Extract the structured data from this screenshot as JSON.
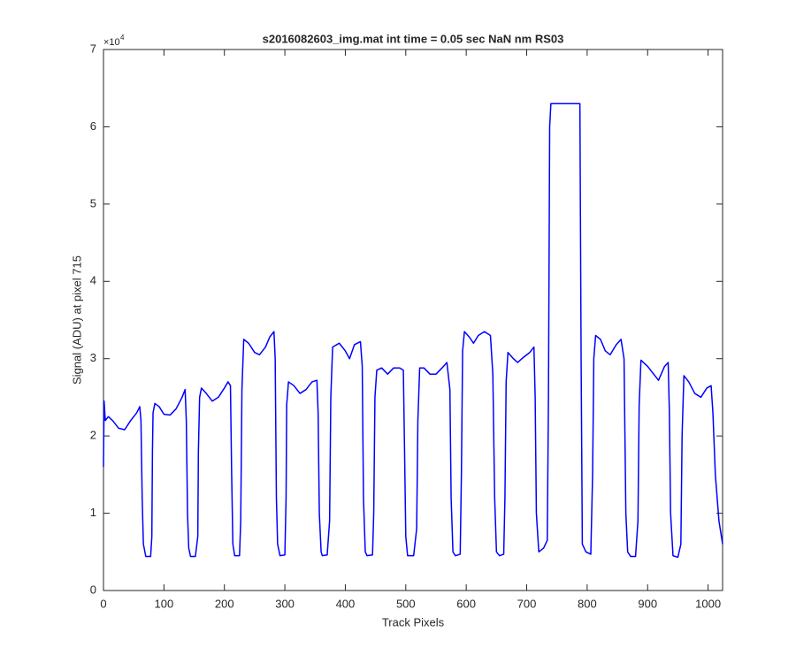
{
  "chart_data": {
    "type": "line",
    "title": "s2016082603_img.mat int time = 0.05 sec  NaN nm RS03",
    "x_label": "Track Pixels",
    "y_label": "Signal (ADU) at pixel 715",
    "y_multiplier_base": "×10",
    "y_multiplier_exponent": "4",
    "xlim": [
      0,
      1024
    ],
    "xticks": [
      0,
      100,
      200,
      300,
      400,
      500,
      600,
      700,
      800,
      900,
      1000
    ],
    "ylim": [
      0,
      7
    ],
    "yticks": [
      0,
      1,
      2,
      3,
      4,
      5,
      6,
      7
    ],
    "grid": false,
    "box": true,
    "series": [
      {
        "color": "#0000ff",
        "x": [
          0,
          1,
          3,
          8,
          15,
          25,
          35,
          45,
          55,
          60,
          62,
          64,
          66,
          70,
          78,
          80,
          81,
          82,
          85,
          92,
          100,
          110,
          120,
          130,
          135,
          137,
          139,
          141,
          144,
          152,
          156,
          157,
          159,
          162,
          170,
          180,
          190,
          200,
          206,
          210,
          212,
          214,
          217,
          225,
          227,
          229,
          232,
          240,
          250,
          258,
          268,
          275,
          282,
          284,
          286,
          288,
          292,
          300,
          302,
          303,
          306,
          315,
          325,
          335,
          345,
          353,
          355,
          357,
          360,
          362,
          370,
          374,
          376,
          379,
          390,
          400,
          407,
          415,
          425,
          428,
          430,
          433,
          436,
          445,
          447,
          449,
          452,
          460,
          470,
          480,
          490,
          496,
          498,
          500,
          503,
          513,
          518,
          520,
          523,
          530,
          540,
          550,
          560,
          568,
          573,
          575,
          578,
          582,
          590,
          592,
          594,
          597,
          605,
          612,
          620,
          630,
          640,
          644,
          647,
          650,
          655,
          662,
          664,
          666,
          669,
          678,
          685,
          695,
          705,
          712,
          714,
          716,
          720,
          728,
          734,
          736,
          738,
          740,
          788,
          790,
          792,
          798,
          806,
          809,
          811,
          814,
          822,
          830,
          838,
          848,
          856,
          861,
          864,
          867,
          872,
          880,
          884,
          886,
          889,
          900,
          910,
          918,
          928,
          934,
          936,
          938,
          942,
          950,
          955,
          957,
          960,
          968,
          978,
          988,
          998,
          1005,
          1008,
          1012,
          1018,
          1024
        ],
        "values": [
          1.6,
          2.45,
          2.2,
          2.25,
          2.2,
          2.1,
          2.08,
          2.2,
          2.3,
          2.38,
          2.2,
          1.2,
          0.6,
          0.44,
          0.44,
          0.7,
          1.8,
          2.3,
          2.42,
          2.38,
          2.28,
          2.27,
          2.35,
          2.5,
          2.6,
          2.2,
          1.0,
          0.55,
          0.44,
          0.44,
          0.7,
          1.8,
          2.5,
          2.62,
          2.55,
          2.45,
          2.5,
          2.62,
          2.7,
          2.65,
          1.5,
          0.6,
          0.45,
          0.45,
          0.9,
          2.6,
          3.25,
          3.2,
          3.08,
          3.05,
          3.15,
          3.28,
          3.35,
          3.0,
          1.2,
          0.6,
          0.45,
          0.46,
          1.2,
          2.4,
          2.7,
          2.65,
          2.55,
          2.6,
          2.7,
          2.72,
          2.3,
          1.0,
          0.5,
          0.45,
          0.46,
          0.9,
          2.5,
          3.15,
          3.2,
          3.1,
          3.0,
          3.18,
          3.22,
          2.9,
          1.2,
          0.5,
          0.45,
          0.46,
          1.0,
          2.5,
          2.85,
          2.88,
          2.8,
          2.88,
          2.88,
          2.85,
          1.8,
          0.7,
          0.45,
          0.45,
          0.8,
          2.2,
          2.88,
          2.88,
          2.8,
          2.8,
          2.88,
          2.95,
          2.6,
          1.2,
          0.5,
          0.45,
          0.47,
          1.5,
          3.1,
          3.35,
          3.28,
          3.2,
          3.3,
          3.35,
          3.3,
          2.8,
          1.2,
          0.5,
          0.45,
          0.47,
          1.2,
          2.7,
          3.08,
          3.0,
          2.95,
          3.02,
          3.08,
          3.15,
          2.5,
          1.0,
          0.5,
          0.55,
          0.65,
          2.5,
          6.0,
          6.3,
          6.3,
          3.0,
          0.6,
          0.5,
          0.47,
          1.5,
          3.0,
          3.3,
          3.25,
          3.1,
          3.05,
          3.18,
          3.25,
          3.0,
          1.0,
          0.5,
          0.44,
          0.44,
          0.9,
          2.4,
          2.98,
          2.9,
          2.8,
          2.72,
          2.9,
          2.95,
          2.3,
          1.0,
          0.45,
          0.43,
          0.6,
          2.0,
          2.78,
          2.7,
          2.55,
          2.5,
          2.62,
          2.65,
          2.3,
          1.5,
          0.9,
          0.6
        ]
      }
    ]
  }
}
